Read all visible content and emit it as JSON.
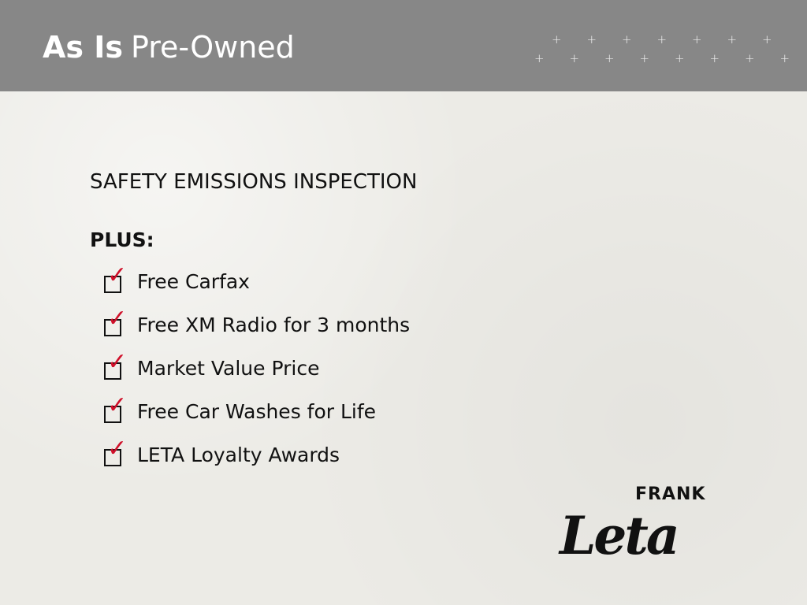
{
  "header": {
    "title_bold": "As Is",
    "title_rest": "Pre-Owned",
    "background": "#878787"
  },
  "content": {
    "heading": "SAFETY EMISSIONS INSPECTION",
    "plus_label": "PLUS:",
    "check_color": "#d0102a",
    "items": [
      {
        "label": "Free Carfax",
        "checked": true
      },
      {
        "label": "Free XM Radio for 3 months",
        "checked": true
      },
      {
        "label": "Market Value Price",
        "checked": true
      },
      {
        "label": "Free Car Washes for Life",
        "checked": true
      },
      {
        "label": "LETA Loyalty Awards",
        "checked": true
      }
    ]
  },
  "logo": {
    "top": "FRANK",
    "main": "Leta"
  }
}
